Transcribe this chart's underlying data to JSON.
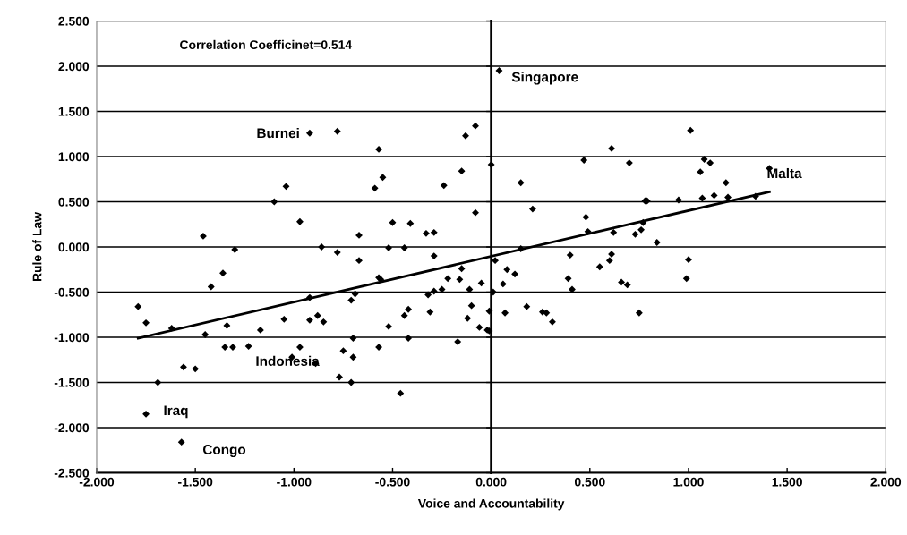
{
  "chart_data": {
    "type": "scatter",
    "xlabel": "Voice and Accountability",
    "ylabel": "Rule of Law",
    "xlim": [
      -2,
      2
    ],
    "ylim": [
      -2.5,
      2.5
    ],
    "xticks": [
      {
        "value": -2,
        "label": "-2.000"
      },
      {
        "value": -1.5,
        "label": "-1.500"
      },
      {
        "value": -1,
        "label": "-1.000"
      },
      {
        "value": -0.5,
        "label": "-0.500"
      },
      {
        "value": 0,
        "label": "0.000"
      },
      {
        "value": 0.5,
        "label": "0.500"
      },
      {
        "value": 1,
        "label": "1.000"
      },
      {
        "value": 1.5,
        "label": "1.500"
      },
      {
        "value": 2,
        "label": "2.000"
      }
    ],
    "yticks": [
      {
        "value": -2.5,
        "label": "-2.500"
      },
      {
        "value": -2,
        "label": "-2.000"
      },
      {
        "value": -1.5,
        "label": "-1.500"
      },
      {
        "value": -1,
        "label": "-1.000"
      },
      {
        "value": -0.5,
        "label": "-0.500"
      },
      {
        "value": 0,
        "label": "0.000"
      },
      {
        "value": 0.5,
        "label": "0.500"
      },
      {
        "value": 1,
        "label": "1.000"
      },
      {
        "value": 1.5,
        "label": "1.500"
      },
      {
        "value": 2,
        "label": "2.000"
      },
      {
        "value": 2.5,
        "label": "2.500"
      }
    ],
    "grid": "y",
    "series": [
      {
        "marker": "diamond",
        "color": "#000000",
        "x": [
          -0.92,
          -0.78,
          -1.04,
          -1.1,
          -0.97,
          -1.46,
          -0.67,
          -1.3,
          -0.86,
          -0.78,
          0.04,
          -0.08,
          -0.13,
          -0.57,
          -0.55,
          -0.59,
          -0.24,
          -0.15,
          0.0,
          -0.08,
          -0.5,
          -0.41,
          -0.33,
          -0.29,
          -0.52,
          -0.44,
          0.15,
          0.21,
          0.47,
          0.61,
          0.7,
          0.48,
          0.49,
          0.62,
          0.73,
          0.15,
          1.01,
          1.08,
          1.11,
          1.06,
          1.41,
          1.19,
          0.78,
          0.79,
          0.95,
          1.07,
          1.13,
          1.2,
          1.34,
          0.77,
          0.76,
          0.84,
          -0.67,
          -1.36,
          -1.42,
          -1.79,
          -1.75,
          -1.62,
          -1.45,
          -1.34,
          -1.35,
          -1.31,
          -1.23,
          -1.17,
          -1.05,
          -0.97,
          -1.01,
          -0.92,
          -0.92,
          -0.88,
          -0.85,
          -0.89,
          -0.71,
          -0.69,
          -0.7,
          -0.75,
          -0.7,
          -0.77,
          -0.71,
          -1.56,
          -1.5,
          -1.69,
          -1.75,
          -1.57,
          -0.29,
          0.02,
          -0.15,
          -0.57,
          -0.56,
          -0.22,
          -0.16,
          -0.05,
          0.08,
          0.12,
          0.06,
          0.01,
          -0.11,
          -0.25,
          -0.29,
          -0.32,
          -0.42,
          -0.44,
          -0.31,
          -0.1,
          -0.12,
          -0.01,
          -0.06,
          -0.02,
          -0.01,
          -0.52,
          -0.57,
          -0.42,
          -0.17,
          -0.46,
          0.07,
          0.18,
          0.26,
          0.28,
          0.31,
          0.4,
          0.39,
          0.41,
          0.55,
          0.6,
          0.61,
          0.66,
          0.69,
          1.0,
          0.99,
          0.75
        ],
        "values": [
          1.26,
          1.28,
          0.67,
          0.5,
          0.28,
          0.12,
          0.13,
          -0.03,
          0.0,
          -0.06,
          1.95,
          1.34,
          1.23,
          1.08,
          0.77,
          0.65,
          0.68,
          0.84,
          0.91,
          0.38,
          0.27,
          0.26,
          0.15,
          0.16,
          -0.01,
          -0.01,
          0.71,
          0.42,
          0.96,
          1.09,
          0.93,
          0.33,
          0.17,
          0.16,
          0.14,
          -0.02,
          1.29,
          0.97,
          0.93,
          0.83,
          0.87,
          0.71,
          0.51,
          0.51,
          0.52,
          0.54,
          0.57,
          0.55,
          0.56,
          0.27,
          0.19,
          0.05,
          -0.15,
          -0.29,
          -0.44,
          -0.66,
          -0.84,
          -0.9,
          -0.97,
          -0.87,
          -1.11,
          -1.11,
          -1.1,
          -0.92,
          -0.8,
          -1.11,
          -1.22,
          -0.56,
          -0.81,
          -0.76,
          -0.83,
          -1.29,
          -0.59,
          -0.52,
          -1.01,
          -1.15,
          -1.22,
          -1.44,
          -1.5,
          -1.33,
          -1.35,
          -1.5,
          -1.85,
          -2.16,
          -0.1,
          -0.15,
          -0.24,
          -0.34,
          -0.36,
          -0.35,
          -0.36,
          -0.4,
          -0.25,
          -0.3,
          -0.41,
          -0.5,
          -0.47,
          -0.47,
          -0.49,
          -0.53,
          -0.69,
          -0.76,
          -0.72,
          -0.65,
          -0.79,
          -0.71,
          -0.89,
          -0.92,
          -0.93,
          -0.88,
          -1.11,
          -1.01,
          -1.05,
          -1.62,
          -0.73,
          -0.66,
          -0.72,
          -0.73,
          -0.83,
          -0.09,
          -0.35,
          -0.47,
          -0.22,
          -0.15,
          -0.08,
          -0.39,
          -0.42,
          -0.14,
          -0.35,
          -0.73
        ]
      },
      {
        "type": "line",
        "color": "#000000",
        "x": [
          -1.79,
          1.41
        ],
        "values": [
          -1.01,
          0.61
        ]
      }
    ],
    "annotations": [
      "Correlation Coefficinet=0.514",
      {
        "text": "Singapore",
        "x": 0.04,
        "y": 1.95
      },
      {
        "text": "Burnei",
        "x": -0.92,
        "y": 1.26
      },
      {
        "text": "Malta",
        "x": 1.41,
        "y": 0.87
      },
      {
        "text": "Indonesia",
        "x": -0.89,
        "y": -1.29
      },
      {
        "text": "Iraq",
        "x": -1.75,
        "y": -1.85
      },
      {
        "text": "Congo",
        "x": -1.57,
        "y": -2.16
      }
    ]
  }
}
